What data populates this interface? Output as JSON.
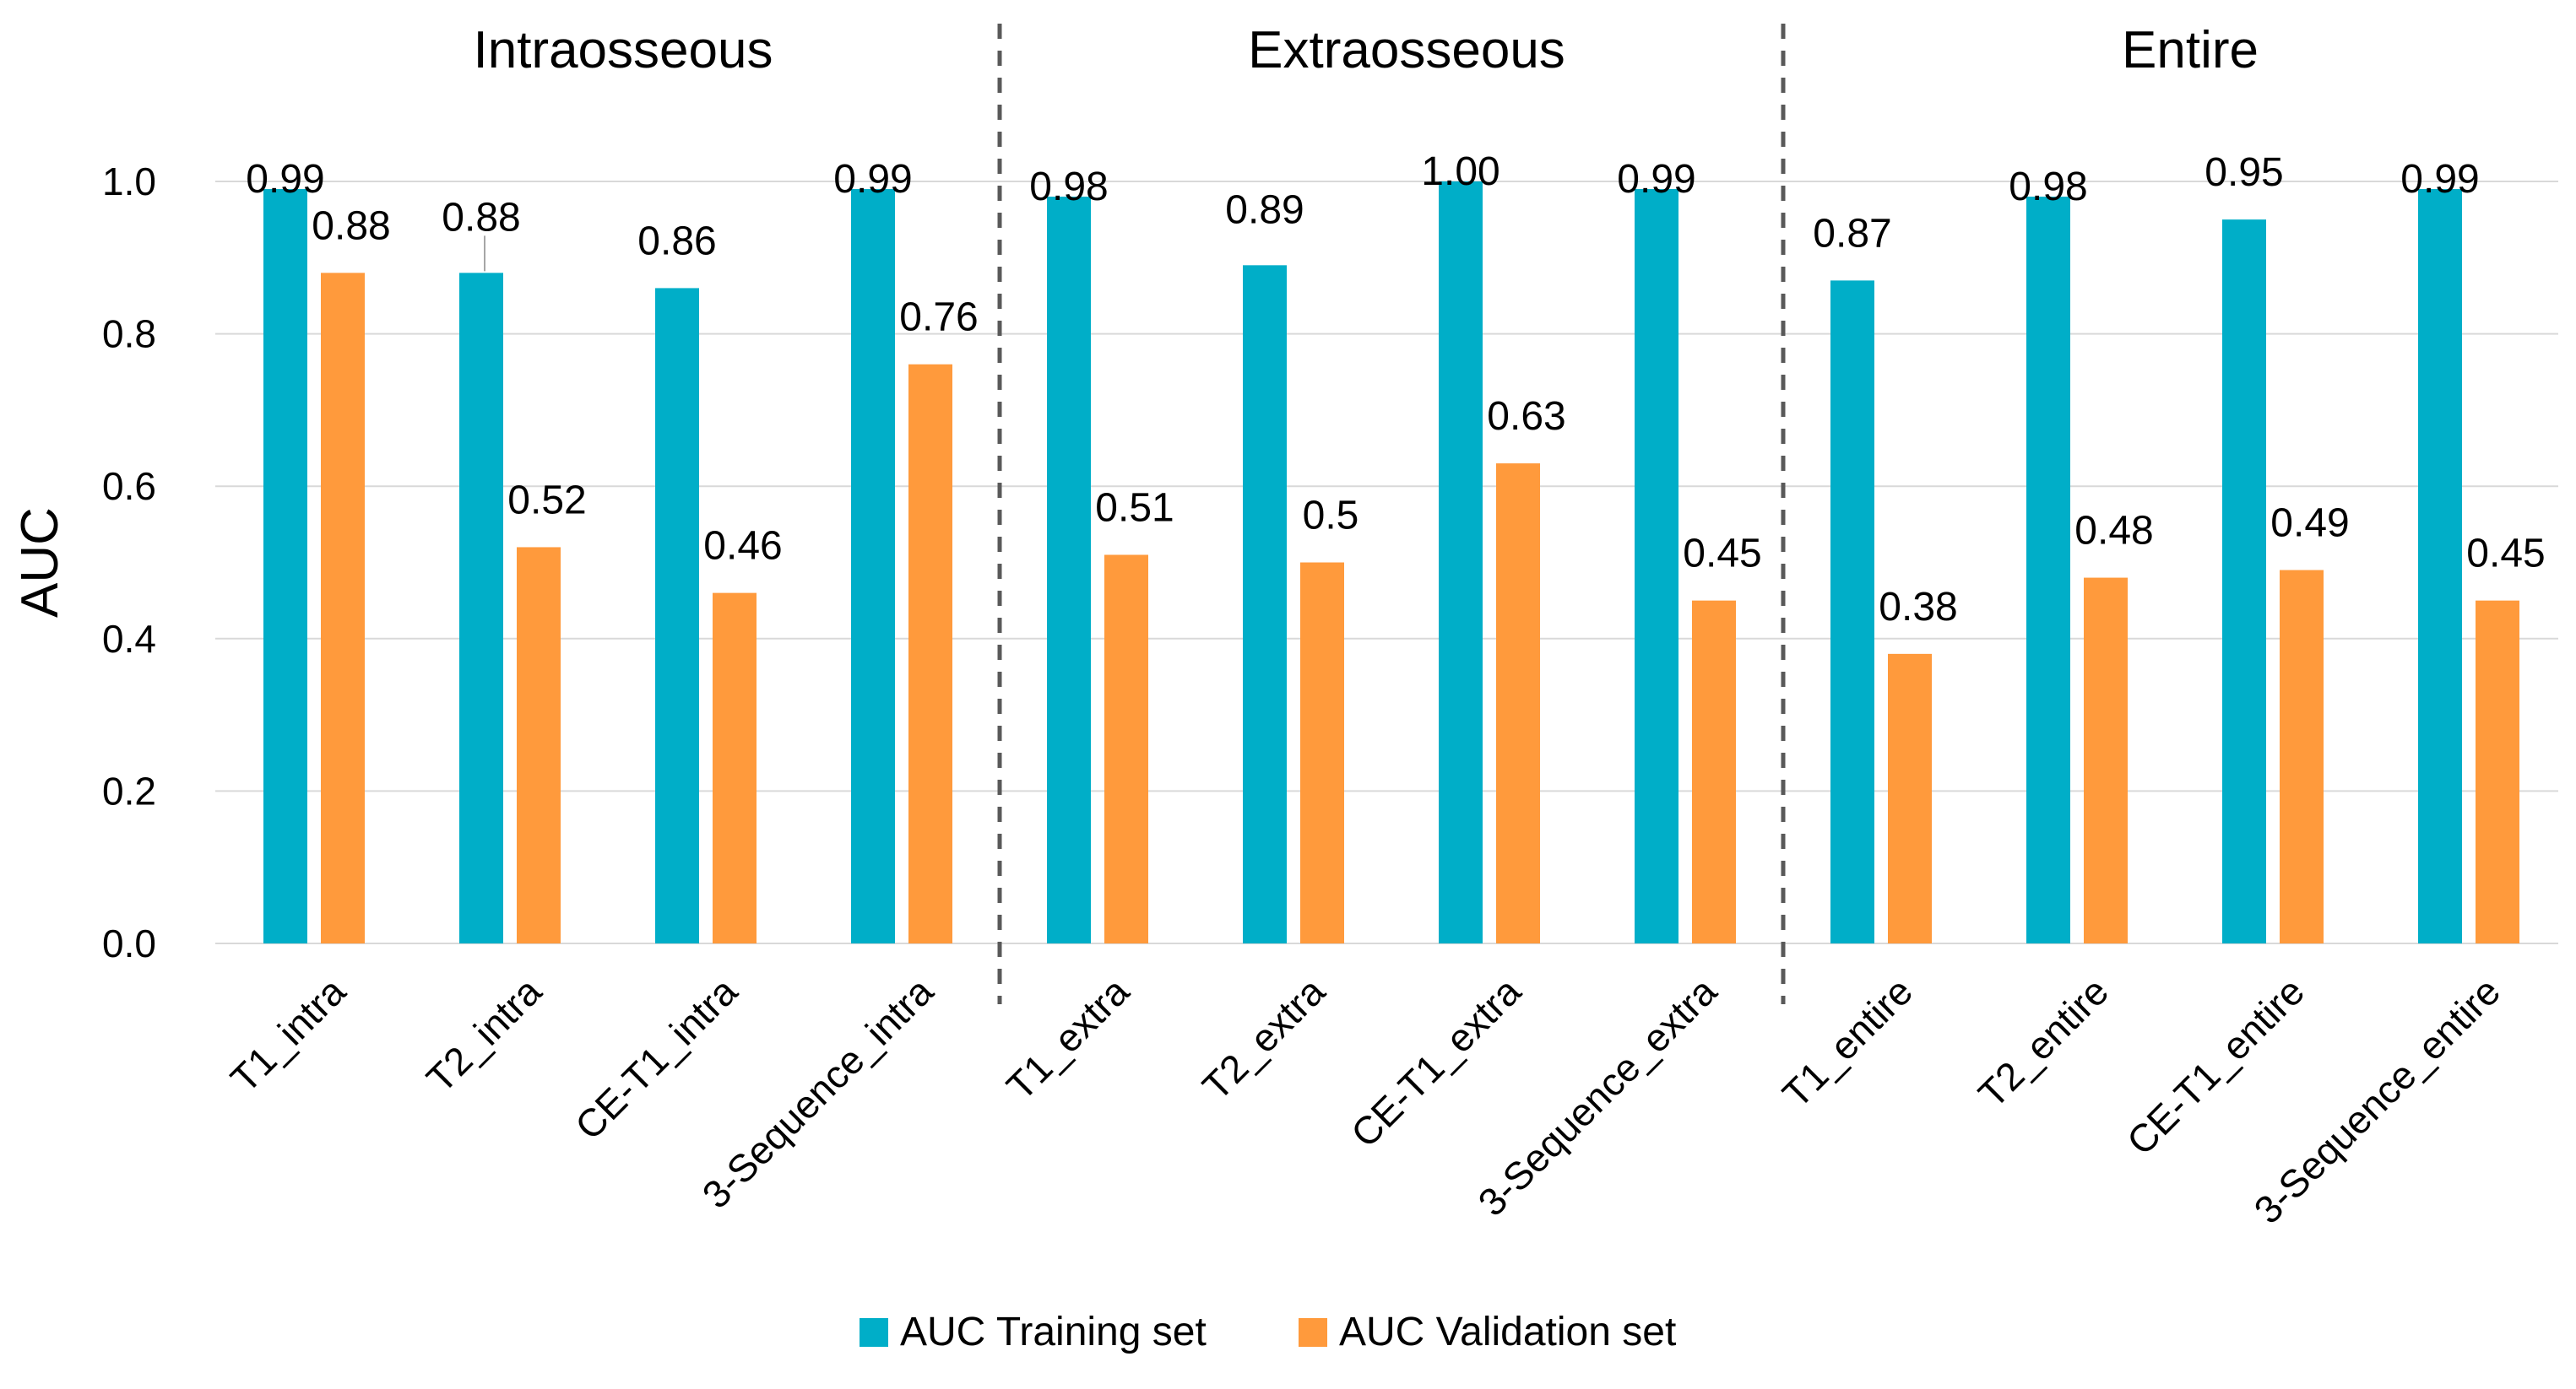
{
  "chart_data": {
    "type": "bar",
    "title": "",
    "xlabel": "",
    "ylabel": "AUC",
    "ylim": [
      0,
      1.0
    ],
    "ytick_step": 0.2,
    "ytick_labels": [
      "0.0",
      "0.2",
      "0.4",
      "0.6",
      "0.8",
      "1.0"
    ],
    "grid": true,
    "legend_position": "bottom",
    "sections": [
      {
        "title": "Intraosseous",
        "start": 0,
        "end": 3
      },
      {
        "title": "Extraosseous",
        "start": 4,
        "end": 7
      },
      {
        "title": "Entire",
        "start": 8,
        "end": 11
      }
    ],
    "categories": [
      "T1_intra",
      "T2_intra",
      "CE-T1_intra",
      "3-Sequence_intra",
      "T1_extra",
      "T2_extra",
      "CE-T1_extra",
      "3-Sequence_extra",
      "T1_entire",
      "T2_entire",
      "CE-T1_entire",
      "3-Sequence_entire"
    ],
    "series": [
      {
        "name": "AUC Training set",
        "color": "#00AEC8",
        "values": [
          0.99,
          0.88,
          0.86,
          0.99,
          0.98,
          0.89,
          1.0,
          0.99,
          0.87,
          0.98,
          0.95,
          0.99
        ],
        "labels": [
          "0.99",
          "0.88",
          "0.86",
          "0.99",
          "0.98",
          "0.89",
          "1.00",
          "0.99",
          "0.87",
          "0.98",
          "0.95",
          "0.99"
        ]
      },
      {
        "name": "AUC Validation set",
        "color": "#FF9A3C",
        "values": [
          0.88,
          0.52,
          0.46,
          0.76,
          0.51,
          0.5,
          0.63,
          0.45,
          0.38,
          0.48,
          0.49,
          0.45
        ],
        "labels": [
          "0.88",
          "0.52",
          "0.46",
          "0.76",
          "0.51",
          "0.5",
          "0.63",
          "0.45",
          "0.38",
          "0.48",
          "0.49",
          "0.45"
        ]
      }
    ]
  }
}
